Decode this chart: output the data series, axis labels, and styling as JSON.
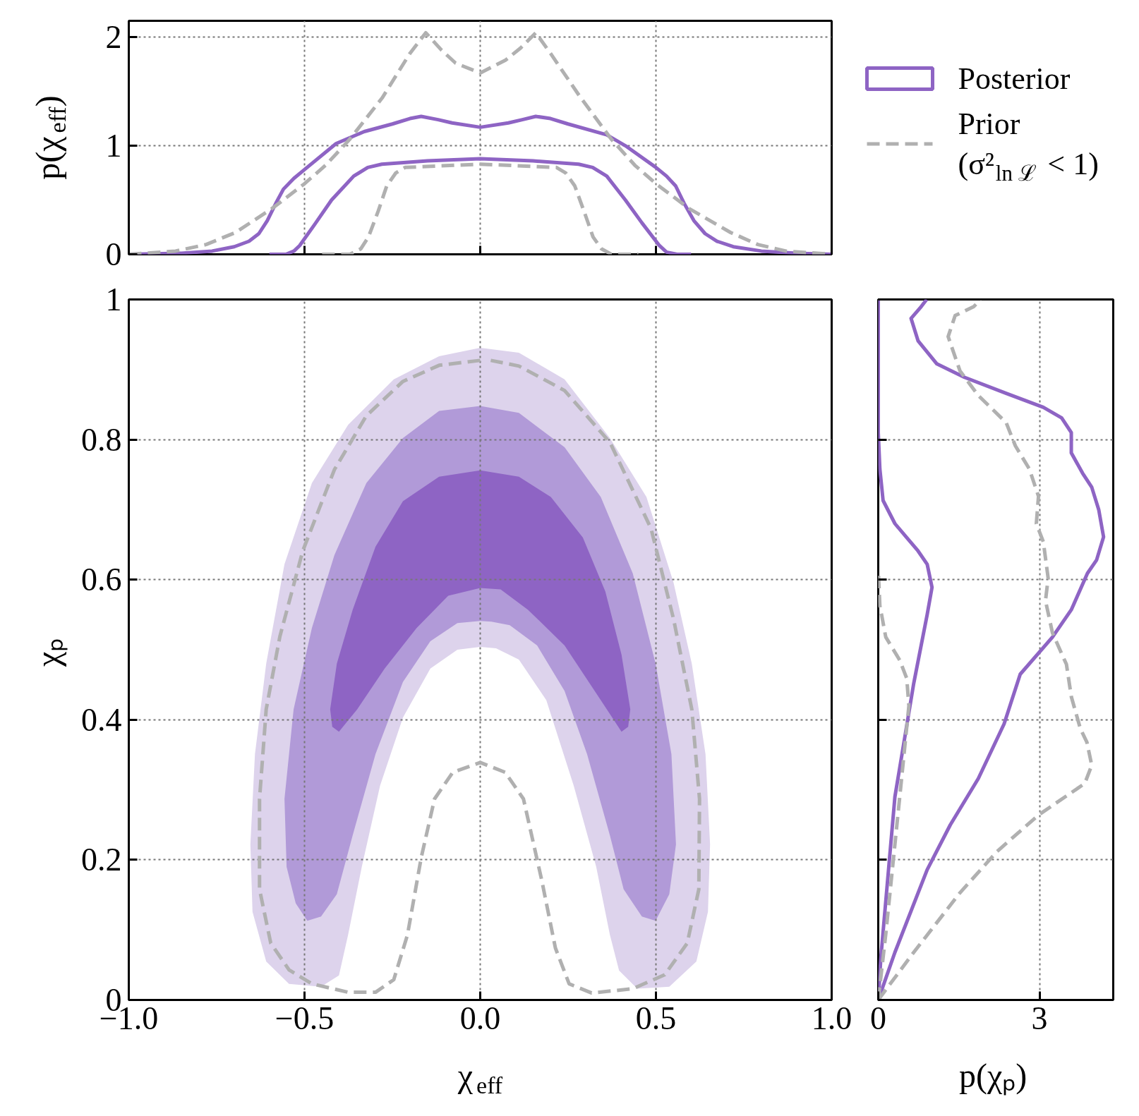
{
  "chart_data": [
    {
      "type": "line",
      "ylabel": "p(χ$_{eff}$)",
      "xlim": [
        -1,
        1
      ],
      "xticks": [
        -1,
        -0.5,
        0,
        0.5,
        1
      ],
      "ylim": [
        0,
        2.15
      ],
      "yticks": [
        0,
        1,
        2
      ],
      "tick_labels": "y",
      "grid": true,
      "series": [
        {
          "color": "#8e64c4",
          "x": [
            -1,
            -0.85,
            -0.763,
            -0.7,
            -0.658,
            -0.63,
            -0.606,
            -0.58,
            -0.56,
            -0.53,
            -0.5,
            -0.41,
            -0.33,
            -0.25,
            -0.2,
            -0.168,
            -0.12,
            -0.08,
            0,
            0.08,
            0.12,
            0.158,
            0.2,
            0.25,
            0.36,
            0.413,
            0.5,
            0.53,
            0.556,
            0.58,
            0.608,
            0.64,
            0.674,
            0.72,
            0.8,
            0.9,
            1
          ],
          "values": [
            0,
            0.01,
            0.03,
            0.07,
            0.12,
            0.19,
            0.31,
            0.48,
            0.6,
            0.7,
            0.78,
            1.02,
            1.13,
            1.2,
            1.25,
            1.27,
            1.24,
            1.21,
            1.17,
            1.21,
            1.24,
            1.27,
            1.25,
            1.2,
            1.1,
            1.0,
            0.8,
            0.72,
            0.63,
            0.47,
            0.31,
            0.19,
            0.12,
            0.07,
            0.03,
            0.01,
            0
          ]
        },
        {
          "color": "#8e64c4",
          "x": [
            -0.6,
            -0.553,
            -0.53,
            -0.514,
            -0.47,
            -0.423,
            -0.36,
            -0.32,
            -0.28,
            -0.15,
            0,
            0.15,
            0.28,
            0.32,
            0.36,
            0.413,
            0.46,
            0.51,
            0.53,
            0.56,
            0.6
          ],
          "values": [
            0,
            0,
            0.03,
            0.08,
            0.28,
            0.5,
            0.72,
            0.8,
            0.83,
            0.86,
            0.88,
            0.86,
            0.83,
            0.8,
            0.72,
            0.5,
            0.29,
            0.08,
            0.02,
            0,
            0
          ]
        },
        {
          "color": "#b0b0b0",
          "line_style": "dashed",
          "x": [
            -1,
            -0.867,
            -0.78,
            -0.697,
            -0.593,
            -0.5,
            -0.44,
            -0.371,
            -0.279,
            -0.2,
            -0.155,
            -0.11,
            -0.07,
            0,
            0.073,
            0.115,
            0.158,
            0.2,
            0.282,
            0.373,
            0.44,
            0.5,
            0.595,
            0.713,
            0.79,
            0.87,
            1
          ],
          "values": [
            0,
            0.03,
            0.09,
            0.2,
            0.42,
            0.65,
            0.82,
            1.06,
            1.44,
            1.85,
            2.04,
            1.88,
            1.76,
            1.67,
            1.79,
            1.9,
            2.04,
            1.85,
            1.46,
            1.06,
            0.82,
            0.65,
            0.42,
            0.2,
            0.09,
            0.03,
            0
          ]
        },
        {
          "color": "#b0b0b0",
          "line_style": "dashed",
          "x": [
            -0.45,
            -0.371,
            -0.34,
            -0.318,
            -0.29,
            -0.266,
            -0.24,
            -0.214,
            0,
            0.217,
            0.243,
            0.269,
            0.295,
            0.321,
            0.345,
            0.373,
            0.45
          ],
          "values": [
            0,
            0,
            0.05,
            0.16,
            0.4,
            0.63,
            0.75,
            0.8,
            0.83,
            0.8,
            0.75,
            0.63,
            0.4,
            0.16,
            0.05,
            0,
            0
          ]
        }
      ]
    },
    {
      "type": "line",
      "xlabel": "χ$_{eff}$",
      "ylabel": "χₚ",
      "xlim": [
        -1,
        1
      ],
      "xticks": [
        {
          "value": -1,
          "label": "−1.0"
        },
        {
          "value": -0.5,
          "label": "−0.5"
        },
        {
          "value": 0,
          "label": "0.0"
        },
        0.5,
        {
          "value": 1,
          "label": "1.0"
        }
      ],
      "ylim": [
        0,
        1
      ],
      "yticks": [
        0,
        0.2,
        0.4,
        0.6,
        0.8,
        1
      ],
      "grid": true,
      "legend": "top right",
      "series": [
        {
          "type": "area",
          "color": "#ddd3ec",
          "x": [
            -0.453,
            -0.544,
            -0.609,
            -0.648,
            -0.654,
            -0.641,
            -0.609,
            -0.557,
            -0.479,
            -0.376,
            -0.246,
            -0.117,
            0,
            0.11,
            0.24,
            0.369,
            0.473,
            0.55,
            0.602,
            0.641,
            0.654,
            0.648,
            0.615,
            0.538,
            0.447,
            0.395,
            0.369,
            0.33,
            0.266,
            0.188,
            0.11,
            0.045,
            0,
            -0.065,
            -0.142,
            -0.22,
            -0.285,
            -0.337,
            -0.376,
            -0.402
          ],
          "values": [
            0.019,
            0.023,
            0.055,
            0.126,
            0.222,
            0.351,
            0.48,
            0.622,
            0.738,
            0.821,
            0.886,
            0.919,
            0.931,
            0.924,
            0.886,
            0.802,
            0.718,
            0.596,
            0.48,
            0.351,
            0.222,
            0.126,
            0.055,
            0.019,
            0.016,
            0.042,
            0.093,
            0.19,
            0.306,
            0.428,
            0.486,
            0.502,
            0.504,
            0.5,
            0.473,
            0.403,
            0.306,
            0.19,
            0.093,
            0.035
          ]
        },
        {
          "type": "area",
          "color": "#b19ad8",
          "x": [
            -0.492,
            -0.525,
            -0.551,
            -0.557,
            -0.531,
            -0.479,
            -0.415,
            -0.324,
            -0.22,
            -0.117,
            0,
            0.11,
            0.24,
            0.343,
            0.434,
            0.499,
            0.544,
            0.557,
            0.538,
            0.499,
            0.46,
            0.408,
            0.369,
            0.304,
            0.24,
            0.162,
            0.084,
            0.032,
            0,
            -0.065,
            -0.142,
            -0.22,
            -0.298,
            -0.363,
            -0.408,
            -0.453
          ],
          "values": [
            0.113,
            0.138,
            0.19,
            0.287,
            0.415,
            0.531,
            0.635,
            0.738,
            0.802,
            0.841,
            0.848,
            0.838,
            0.789,
            0.718,
            0.609,
            0.48,
            0.351,
            0.222,
            0.151,
            0.113,
            0.119,
            0.158,
            0.235,
            0.351,
            0.441,
            0.506,
            0.535,
            0.54,
            0.541,
            0.538,
            0.512,
            0.454,
            0.351,
            0.235,
            0.151,
            0.119
          ]
        },
        {
          "type": "area",
          "name": "Posterior",
          "color": "#8e64c4",
          "x": [
            -0.402,
            -0.421,
            -0.427,
            -0.408,
            -0.363,
            -0.298,
            -0.22,
            -0.117,
            0,
            0.11,
            0.201,
            0.292,
            0.356,
            0.402,
            0.427,
            0.421,
            0.402,
            0.343,
            0.24,
            0.136,
            0.058,
            0,
            -0.091,
            -0.181,
            -0.272,
            -0.35
          ],
          "values": [
            0.383,
            0.39,
            0.415,
            0.48,
            0.557,
            0.647,
            0.712,
            0.747,
            0.756,
            0.747,
            0.718,
            0.66,
            0.583,
            0.493,
            0.415,
            0.39,
            0.383,
            0.428,
            0.506,
            0.557,
            0.586,
            0.588,
            0.577,
            0.531,
            0.473,
            0.415
          ]
        },
        {
          "name": "Prior\n(σ²$_{ln ℒ}$ < 1)",
          "line_style": "dashed",
          "color": "#b0b0b0",
          "x": [
            0,
            -0.117,
            -0.22,
            -0.324,
            -0.415,
            -0.505,
            -0.57,
            -0.609,
            -0.628,
            -0.628,
            -0.596,
            -0.544,
            -0.479,
            -0.376,
            -0.298,
            -0.246,
            -0.207,
            -0.168,
            -0.13,
            -0.078,
            0,
            0.071,
            0.123,
            0.175,
            0.214,
            0.253,
            0.317,
            0.434,
            0.525,
            0.589,
            0.622,
            0.624,
            0.602,
            0.55,
            0.486,
            0.369,
            0.24,
            0.11,
            0.03
          ],
          "values": [
            0.913,
            0.906,
            0.883,
            0.834,
            0.757,
            0.641,
            0.519,
            0.415,
            0.287,
            0.158,
            0.081,
            0.043,
            0.023,
            0.011,
            0.011,
            0.029,
            0.093,
            0.203,
            0.287,
            0.325,
            0.339,
            0.325,
            0.287,
            0.171,
            0.074,
            0.023,
            0.01,
            0.016,
            0.036,
            0.081,
            0.158,
            0.287,
            0.415,
            0.544,
            0.673,
            0.796,
            0.87,
            0.905,
            0.913
          ]
        }
      ]
    },
    {
      "type": "line",
      "xlabel": "p(χₚ)",
      "xlim": [
        0,
        4.37
      ],
      "xticks": [
        0,
        3
      ],
      "ylim": [
        0,
        1
      ],
      "yticks": [
        0,
        0.2,
        0.4,
        0.6,
        0.8,
        1
      ],
      "tick_labels": "x",
      "grid": true,
      "series": [
        {
          "color": "#8e64c4",
          "x": [
            0,
            0.31,
            0.91,
            1.34,
            1.86,
            2.34,
            2.64,
            3.24,
            3.59,
            3.89,
            4.06,
            4.19,
            4.1,
            3.97,
            3.8,
            3.59,
            3.59,
            3.41,
            3.07,
            2.38,
            1.6,
            1.09,
            0.74,
            0.61,
            0.78,
            0.9
          ],
          "values": [
            0,
            0.068,
            0.186,
            0.25,
            0.316,
            0.394,
            0.465,
            0.518,
            0.557,
            0.609,
            0.628,
            0.661,
            0.7,
            0.732,
            0.752,
            0.781,
            0.81,
            0.831,
            0.846,
            0.866,
            0.889,
            0.908,
            0.941,
            0.973,
            0.988,
            1.0
          ]
        },
        {
          "color": "#8e64c4",
          "x": [
            0,
            0.05,
            0.31,
            0.66,
            0.91,
            1.0,
            0.91,
            0.74,
            0.31,
            0.09,
            0.03,
            0,
            0
          ],
          "values": [
            0,
            0.062,
            0.29,
            0.452,
            0.55,
            0.589,
            0.622,
            0.641,
            0.68,
            0.713,
            0.758,
            0.81,
            1.0
          ]
        },
        {
          "color": "#b0b0b0",
          "line_style": "dashed",
          "x": [
            0,
            0.66,
            1.52,
            2.21,
            2.98,
            3.84,
            3.97,
            3.88,
            3.76,
            3.59,
            3.5,
            3.24,
            3.11,
            3.16,
            3.07,
            2.94,
            2.98,
            2.81,
            2.55,
            2.38,
            1.86,
            1.52,
            1.3,
            1.43,
            1.78,
            1.9
          ],
          "values": [
            0,
            0.068,
            0.153,
            0.212,
            0.264,
            0.309,
            0.335,
            0.368,
            0.387,
            0.433,
            0.479,
            0.524,
            0.57,
            0.602,
            0.654,
            0.68,
            0.719,
            0.758,
            0.791,
            0.824,
            0.863,
            0.898,
            0.947,
            0.977,
            0.99,
            1.0
          ]
        },
        {
          "color": "#b0b0b0",
          "line_style": "dashed",
          "x": [
            0,
            0.14,
            0.4,
            0.57,
            0.53,
            0.4,
            0.14,
            0.03,
            0
          ],
          "values": [
            0,
            0.094,
            0.29,
            0.42,
            0.459,
            0.485,
            0.518,
            0.563,
            0.615
          ]
        }
      ]
    }
  ]
}
